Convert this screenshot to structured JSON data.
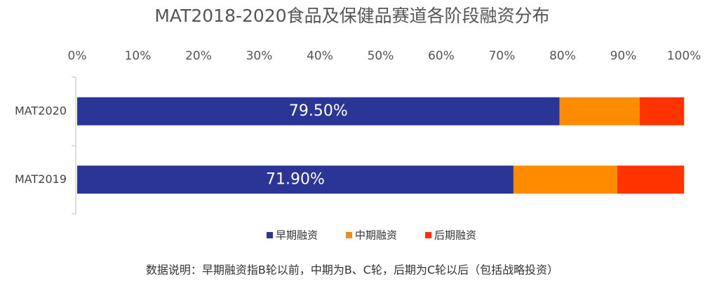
{
  "chart_data": {
    "type": "stacked-barh",
    "title": "MAT2018-2020食品及保健品赛道各阶段融资分布",
    "categories": [
      "MAT2020",
      "MAT2019"
    ],
    "series": [
      {
        "name": "早期融资",
        "color": "#2b3595",
        "values": [
          79.5,
          71.9
        ],
        "value_labels": [
          "79.50%",
          "71.90%"
        ]
      },
      {
        "name": "中期融资",
        "color": "#ff8c00",
        "values": [
          13.2,
          17.1
        ]
      },
      {
        "name": "后期融资",
        "color": "#ff3300",
        "values": [
          7.3,
          11.0
        ]
      }
    ],
    "xlim": [
      0,
      100
    ],
    "xticks": [
      {
        "value": 0,
        "label": "0%"
      },
      {
        "value": 10,
        "label": "10%"
      },
      {
        "value": 20,
        "label": "20%"
      },
      {
        "value": 30,
        "label": "30%"
      },
      {
        "value": 40,
        "label": "40%"
      },
      {
        "value": 50,
        "label": "50%"
      },
      {
        "value": 60,
        "label": "60%"
      },
      {
        "value": 70,
        "label": "70%"
      },
      {
        "value": 80,
        "label": "80%"
      },
      {
        "value": 90,
        "label": "90%"
      },
      {
        "value": 100,
        "label": "100%"
      }
    ],
    "legend": "bottom",
    "note": "数据说明：早期融资指B轮以前，中期为B、C轮，后期为C轮以后（包括战略投资）"
  }
}
